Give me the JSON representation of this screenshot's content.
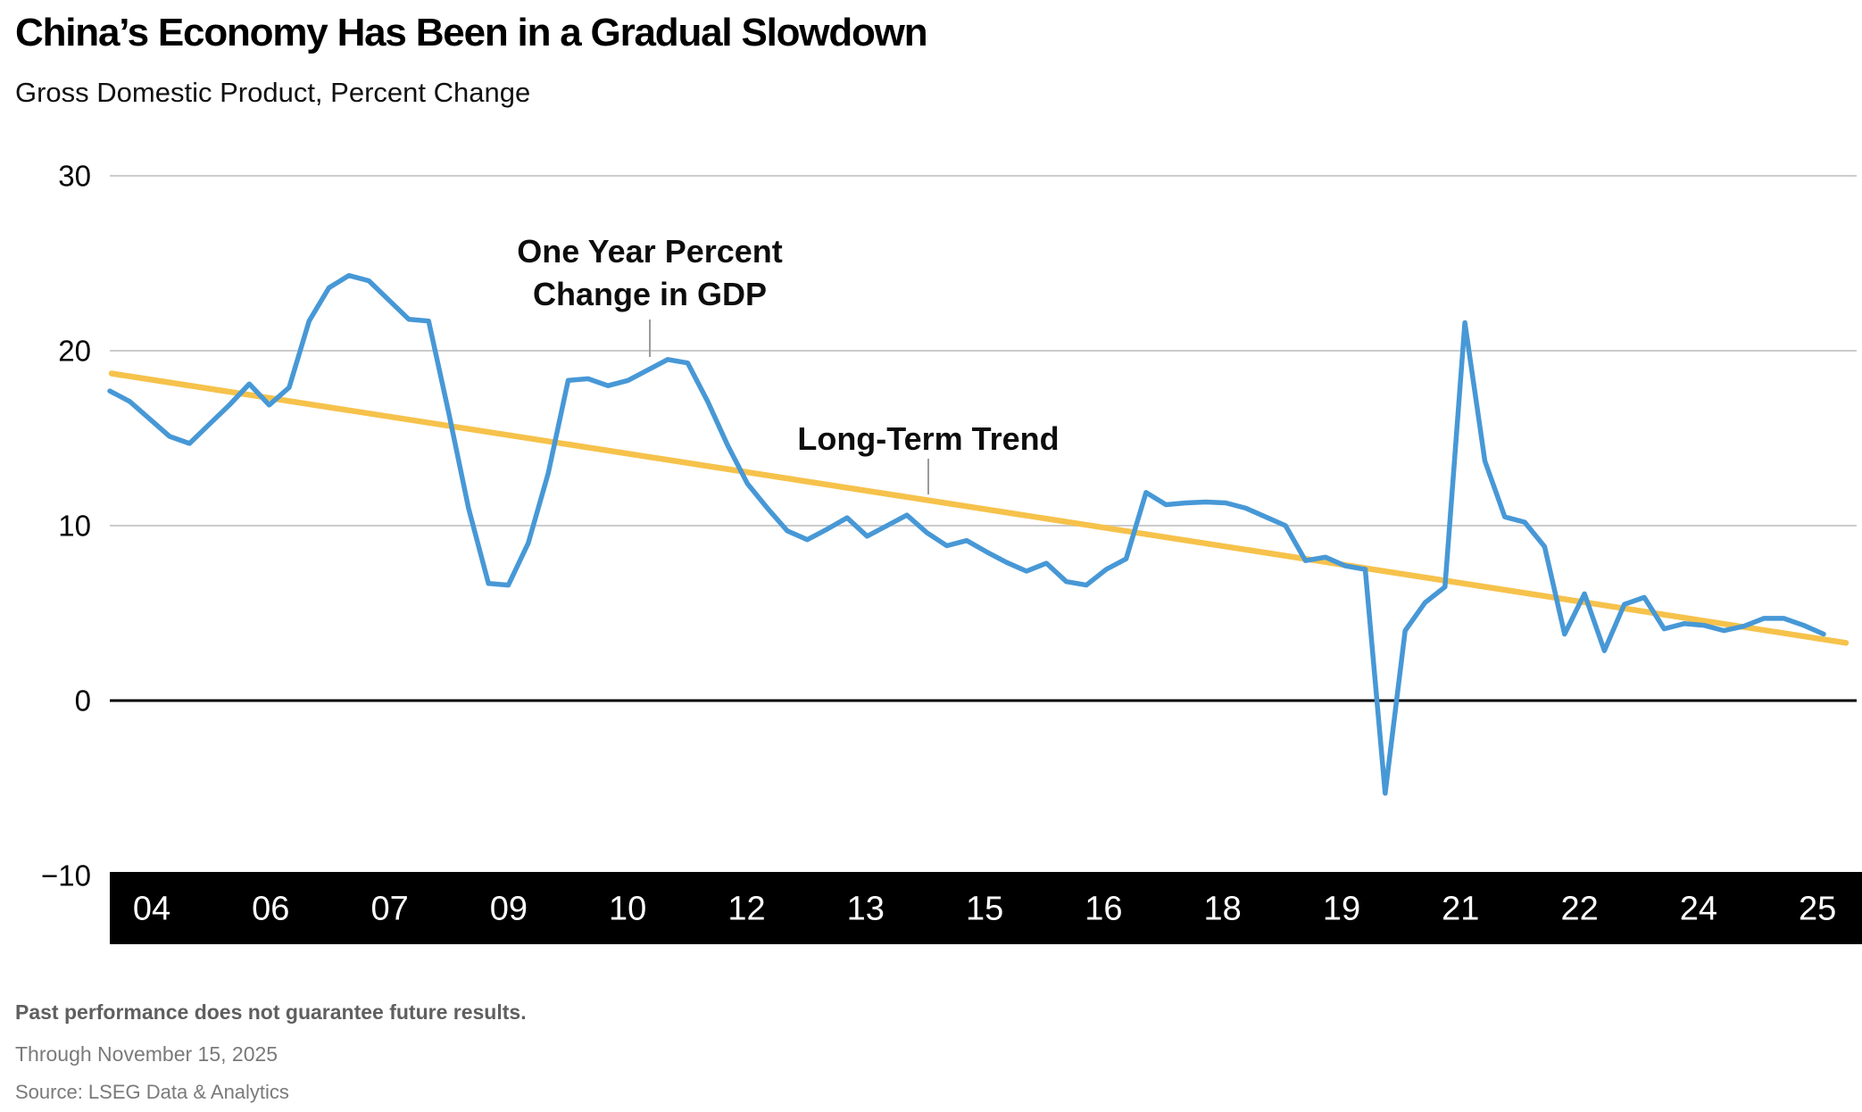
{
  "header": {
    "title": "China’s Economy Has Been in a Gradual Slowdown",
    "subtitle": "Gross Domestic Product, Percent Change"
  },
  "annotations": {
    "gdp_label_line1": "One Year Percent",
    "gdp_label_line2": "Change in GDP",
    "trend_label": "Long-Term Trend"
  },
  "footer": {
    "disclaimer": "Past performance does not guarantee future results.",
    "through": "Through November 15, 2025",
    "source": "Source: LSEG Data & Analytics"
  },
  "colors": {
    "gdp_line": "#4798d6",
    "trend_line": "#f6c24b",
    "gridline": "#cccccc",
    "zero_line": "#000000",
    "axis_band_bg": "#000000",
    "axis_band_text": "#ffffff",
    "leader_line": "#9b9b9b"
  },
  "chart_data": {
    "type": "line",
    "title": "China’s Economy Has Been in a Gradual Slowdown",
    "subtitle": "Gross Domestic Product, Percent Change",
    "xlabel": "",
    "ylabel": "Percent Change",
    "ylim": [
      -10,
      30
    ],
    "grid": "horizontal",
    "legend": "none (direct labels with leader lines)",
    "x_tick_labels": [
      "04",
      "06",
      "07",
      "09",
      "10",
      "12",
      "13",
      "15",
      "16",
      "18",
      "19",
      "21",
      "22",
      "24",
      "25"
    ],
    "y_tick_values": [
      30,
      20,
      10,
      0,
      -10
    ],
    "y_tick_labels": [
      "30",
      "20",
      "10",
      "0",
      "−10"
    ],
    "series": [
      {
        "name": "One Year Percent Change in GDP",
        "frequency": "quarterly",
        "start": "2004 Q1",
        "end": "2025 Q3",
        "values": [
          17.7,
          17.1,
          16.1,
          15.1,
          14.7,
          15.8,
          16.9,
          18.1,
          16.9,
          17.9,
          21.7,
          23.6,
          24.3,
          24,
          22.9,
          21.8,
          21.7,
          16.5,
          11,
          6.7,
          6.6,
          9,
          13,
          18.3,
          18.4,
          18,
          18.3,
          18.9,
          19.5,
          19.3,
          17.1,
          14.6,
          12.4,
          11,
          9.7,
          9.2,
          9.8,
          10.45,
          9.4,
          10,
          10.6,
          9.6,
          8.85,
          9.15,
          8.5,
          7.9,
          7.4,
          7.85,
          6.8,
          6.6,
          7.5,
          8.1,
          11.9,
          11.2,
          11.3,
          11.35,
          11.3,
          11,
          10.5,
          10,
          8,
          8.2,
          7.7,
          7.5,
          -5.3,
          4,
          5.6,
          6.5,
          21.6,
          13.7,
          10.5,
          10.2,
          8.8,
          3.8,
          6.1,
          2.85,
          5.5,
          5.9,
          4.1,
          4.4,
          4.3,
          4,
          4.25,
          4.7,
          4.7,
          4.3,
          3.8
        ]
      },
      {
        "name": "Long-Term Trend",
        "type": "linear-trend",
        "start_value": 18.7,
        "end_value": 3.3
      }
    ]
  }
}
